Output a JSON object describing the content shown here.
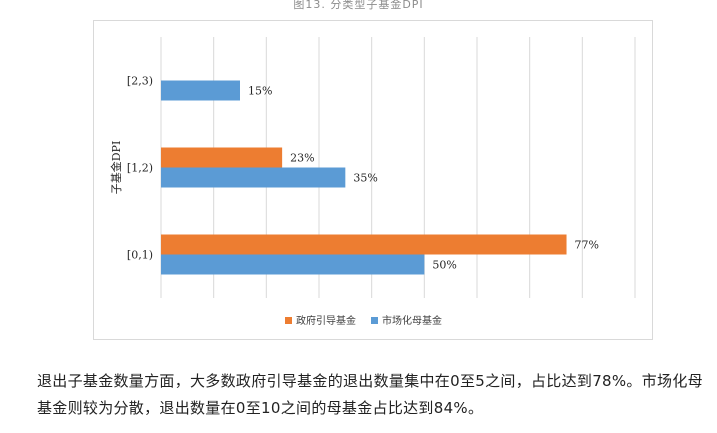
{
  "figure": {
    "caption": "图13. 分类型子基金DPI"
  },
  "chart_data": {
    "type": "bar",
    "orientation": "horizontal",
    "ylabel": "子基金DPI",
    "categories": [
      "[2,3)",
      "[1,2)",
      "[0,1)"
    ],
    "series": [
      {
        "name": "政府引导基金",
        "color": "#ED7D31",
        "values": [
          null,
          23,
          77
        ],
        "labels": [
          "",
          "23%",
          "77%"
        ]
      },
      {
        "name": "市场化母基金",
        "color": "#5B9BD5",
        "values": [
          15,
          35,
          50
        ],
        "labels": [
          "15%",
          "35%",
          "50%"
        ]
      }
    ],
    "xlim": [
      0,
      90
    ],
    "grid": true,
    "legend_position": "bottom"
  },
  "body": {
    "paragraph": "退出子基金数量方面，大多数政府引导基金的退出数量集中在0至5之间，占比达到78%。市场化母基金则较为分散，退出数量在0至10之间的母基金占比达到84%。"
  }
}
